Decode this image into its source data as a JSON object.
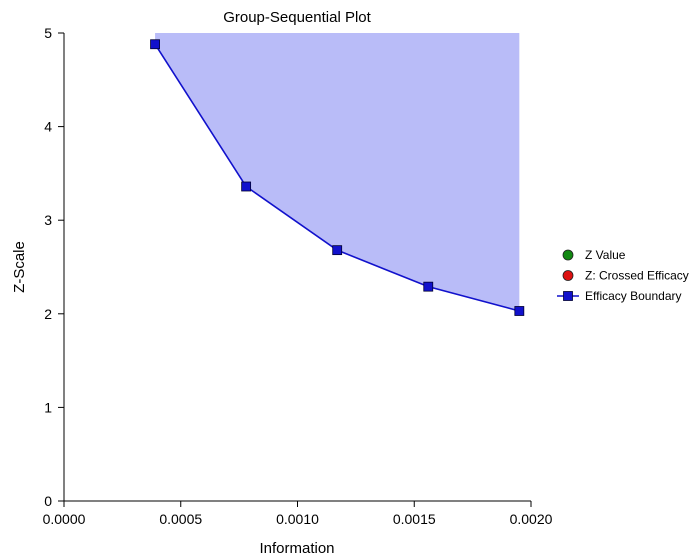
{
  "chart_data": {
    "type": "line",
    "title": "Group-Sequential Plot",
    "xlabel": "Information",
    "ylabel": "Z-Scale",
    "xlim": [
      0,
      0.002
    ],
    "ylim": [
      0,
      5
    ],
    "x_ticks": [
      "0.0000",
      "0.0005",
      "0.0010",
      "0.0015",
      "0.0020"
    ],
    "x_tick_values": [
      0,
      0.0005,
      0.001,
      0.0015,
      0.002
    ],
    "y_ticks": [
      "0",
      "1",
      "2",
      "3",
      "4",
      "5"
    ],
    "y_tick_values": [
      0,
      1,
      2,
      3,
      4,
      5
    ],
    "grid": false,
    "legend_position": "right",
    "legend": [
      {
        "label": "Z Value",
        "marker": "circle",
        "color": "#118811"
      },
      {
        "label": "Z: Crossed Efficacy",
        "marker": "circle",
        "color": "#dd1111"
      },
      {
        "label": "Efficacy Boundary",
        "marker": "square-line",
        "color": "#1111cc"
      }
    ],
    "series": [
      {
        "name": "Efficacy Boundary",
        "color": "#1111cc",
        "x": [
          0.00039,
          0.00078,
          0.00117,
          0.00156,
          0.00195
        ],
        "y": [
          4.88,
          3.36,
          2.68,
          2.29,
          2.03
        ]
      }
    ],
    "efficacy_region_fill": "#b9bcf8",
    "efficacy_region_top": 5
  }
}
